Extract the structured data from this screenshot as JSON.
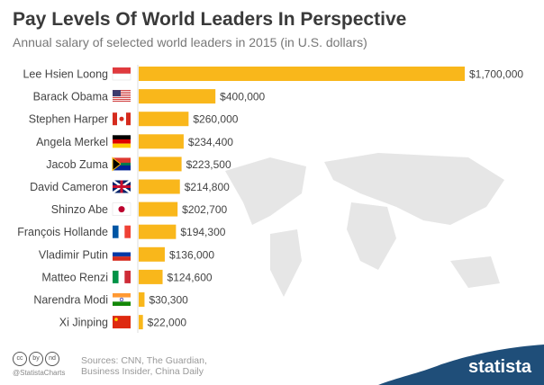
{
  "chart_data": {
    "type": "bar",
    "title": "Pay Levels Of World Leaders In Perspective",
    "subtitle": "Annual salary of selected world leaders in 2015 (in U.S. dollars)",
    "xlabel": "",
    "ylabel": "",
    "xlim": [
      0,
      1700000
    ],
    "categories": [
      "Lee Hsien Loong",
      "Barack Obama",
      "Stephen Harper",
      "Angela Merkel",
      "Jacob Zuma",
      "David Cameron",
      "Shinzo Abe",
      "François Hollande",
      "Vladimir Putin",
      "Matteo Renzi",
      "Narendra Modi",
      "Xi Jinping"
    ],
    "values": [
      1700000,
      400000,
      260000,
      234400,
      223500,
      214800,
      202700,
      194300,
      136000,
      124600,
      30300,
      22000
    ],
    "labels": [
      "$1,700,000",
      "$400,000",
      "$260,000",
      "$234,400",
      "$223,500",
      "$214,800",
      "$202,700",
      "$194,300",
      "$136,000",
      "$124,600",
      "$30,300",
      "$22,000"
    ],
    "flags": [
      "singapore",
      "usa",
      "canada",
      "germany",
      "south-africa",
      "uk",
      "japan",
      "france",
      "russia",
      "italy",
      "india",
      "china"
    ],
    "bar_color": "#f9b71b"
  },
  "footer": {
    "sources_line1": "Sources: CNN, The Guardian,",
    "sources_line2": "Business Insider, China Daily",
    "handle": "@StatistaCharts",
    "cc_icons": [
      "cc",
      "by",
      "nd"
    ],
    "logo": "statista"
  }
}
